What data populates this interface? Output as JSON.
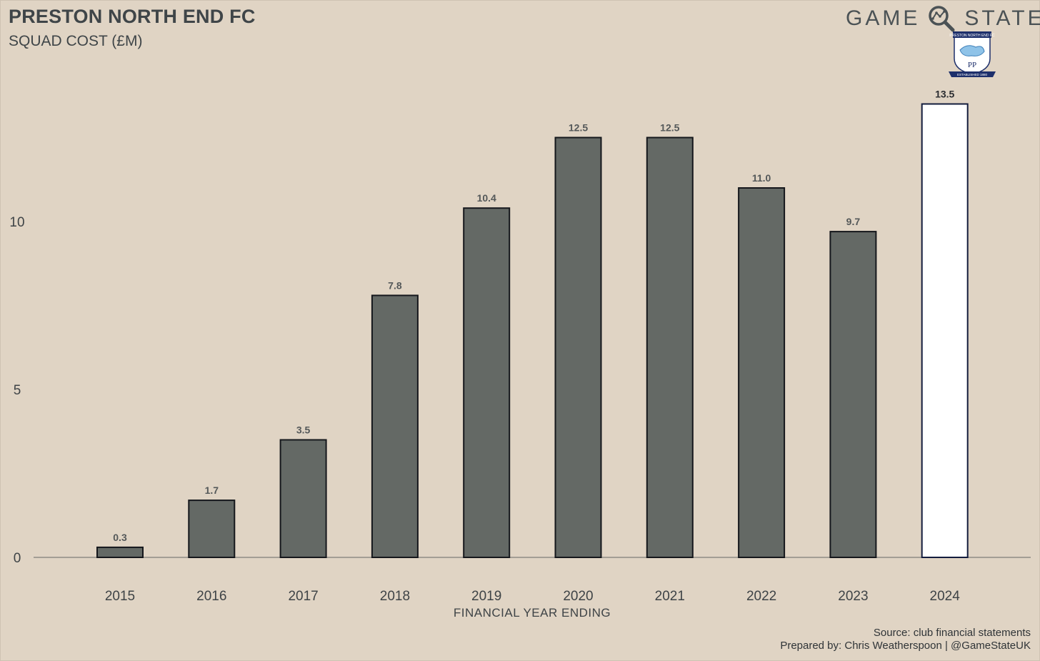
{
  "header": {
    "title": "PRESTON NORTH END FC",
    "subtitle": "SQUAD COST (£M)"
  },
  "brand": {
    "word_left": "GAME",
    "word_right": "STATE",
    "icon": "magnifier-icon"
  },
  "crest": {
    "icon": "preston-crest-icon",
    "top_text": "PRESTON NORTH END FC",
    "monogram": "PP",
    "bottom_text": "ESTABLISHED 1880"
  },
  "footer": {
    "source": "Source: club financial statements",
    "credit": "Prepared by: Chris Weatherspoon | @GameStateUK"
  },
  "chart_data": {
    "type": "bar",
    "categories": [
      "2015",
      "2016",
      "2017",
      "2018",
      "2019",
      "2020",
      "2021",
      "2022",
      "2023",
      "2024"
    ],
    "values": [
      0.3,
      1.7,
      3.5,
      7.8,
      10.4,
      12.5,
      12.5,
      11.0,
      9.7,
      13.5
    ],
    "data_labels": [
      "0.3",
      "1.7",
      "3.5",
      "7.8",
      "10.4",
      "12.5",
      "12.5",
      "11.0",
      "9.7",
      "13.5"
    ],
    "highlight_category": "2024",
    "xlabel": "FINANCIAL YEAR ENDING",
    "ylabel": "",
    "ylim": [
      0,
      14
    ],
    "yticks": [
      0,
      5,
      10
    ],
    "grid": false,
    "colors": {
      "bar": "#646965",
      "bar_highlight": "#ffffff",
      "bar_outline": "#15171c",
      "highlight_outline": "#131c3d",
      "baseline": "#a39e95",
      "label": "#545859",
      "highlight_label": "#2a2c30"
    }
  }
}
